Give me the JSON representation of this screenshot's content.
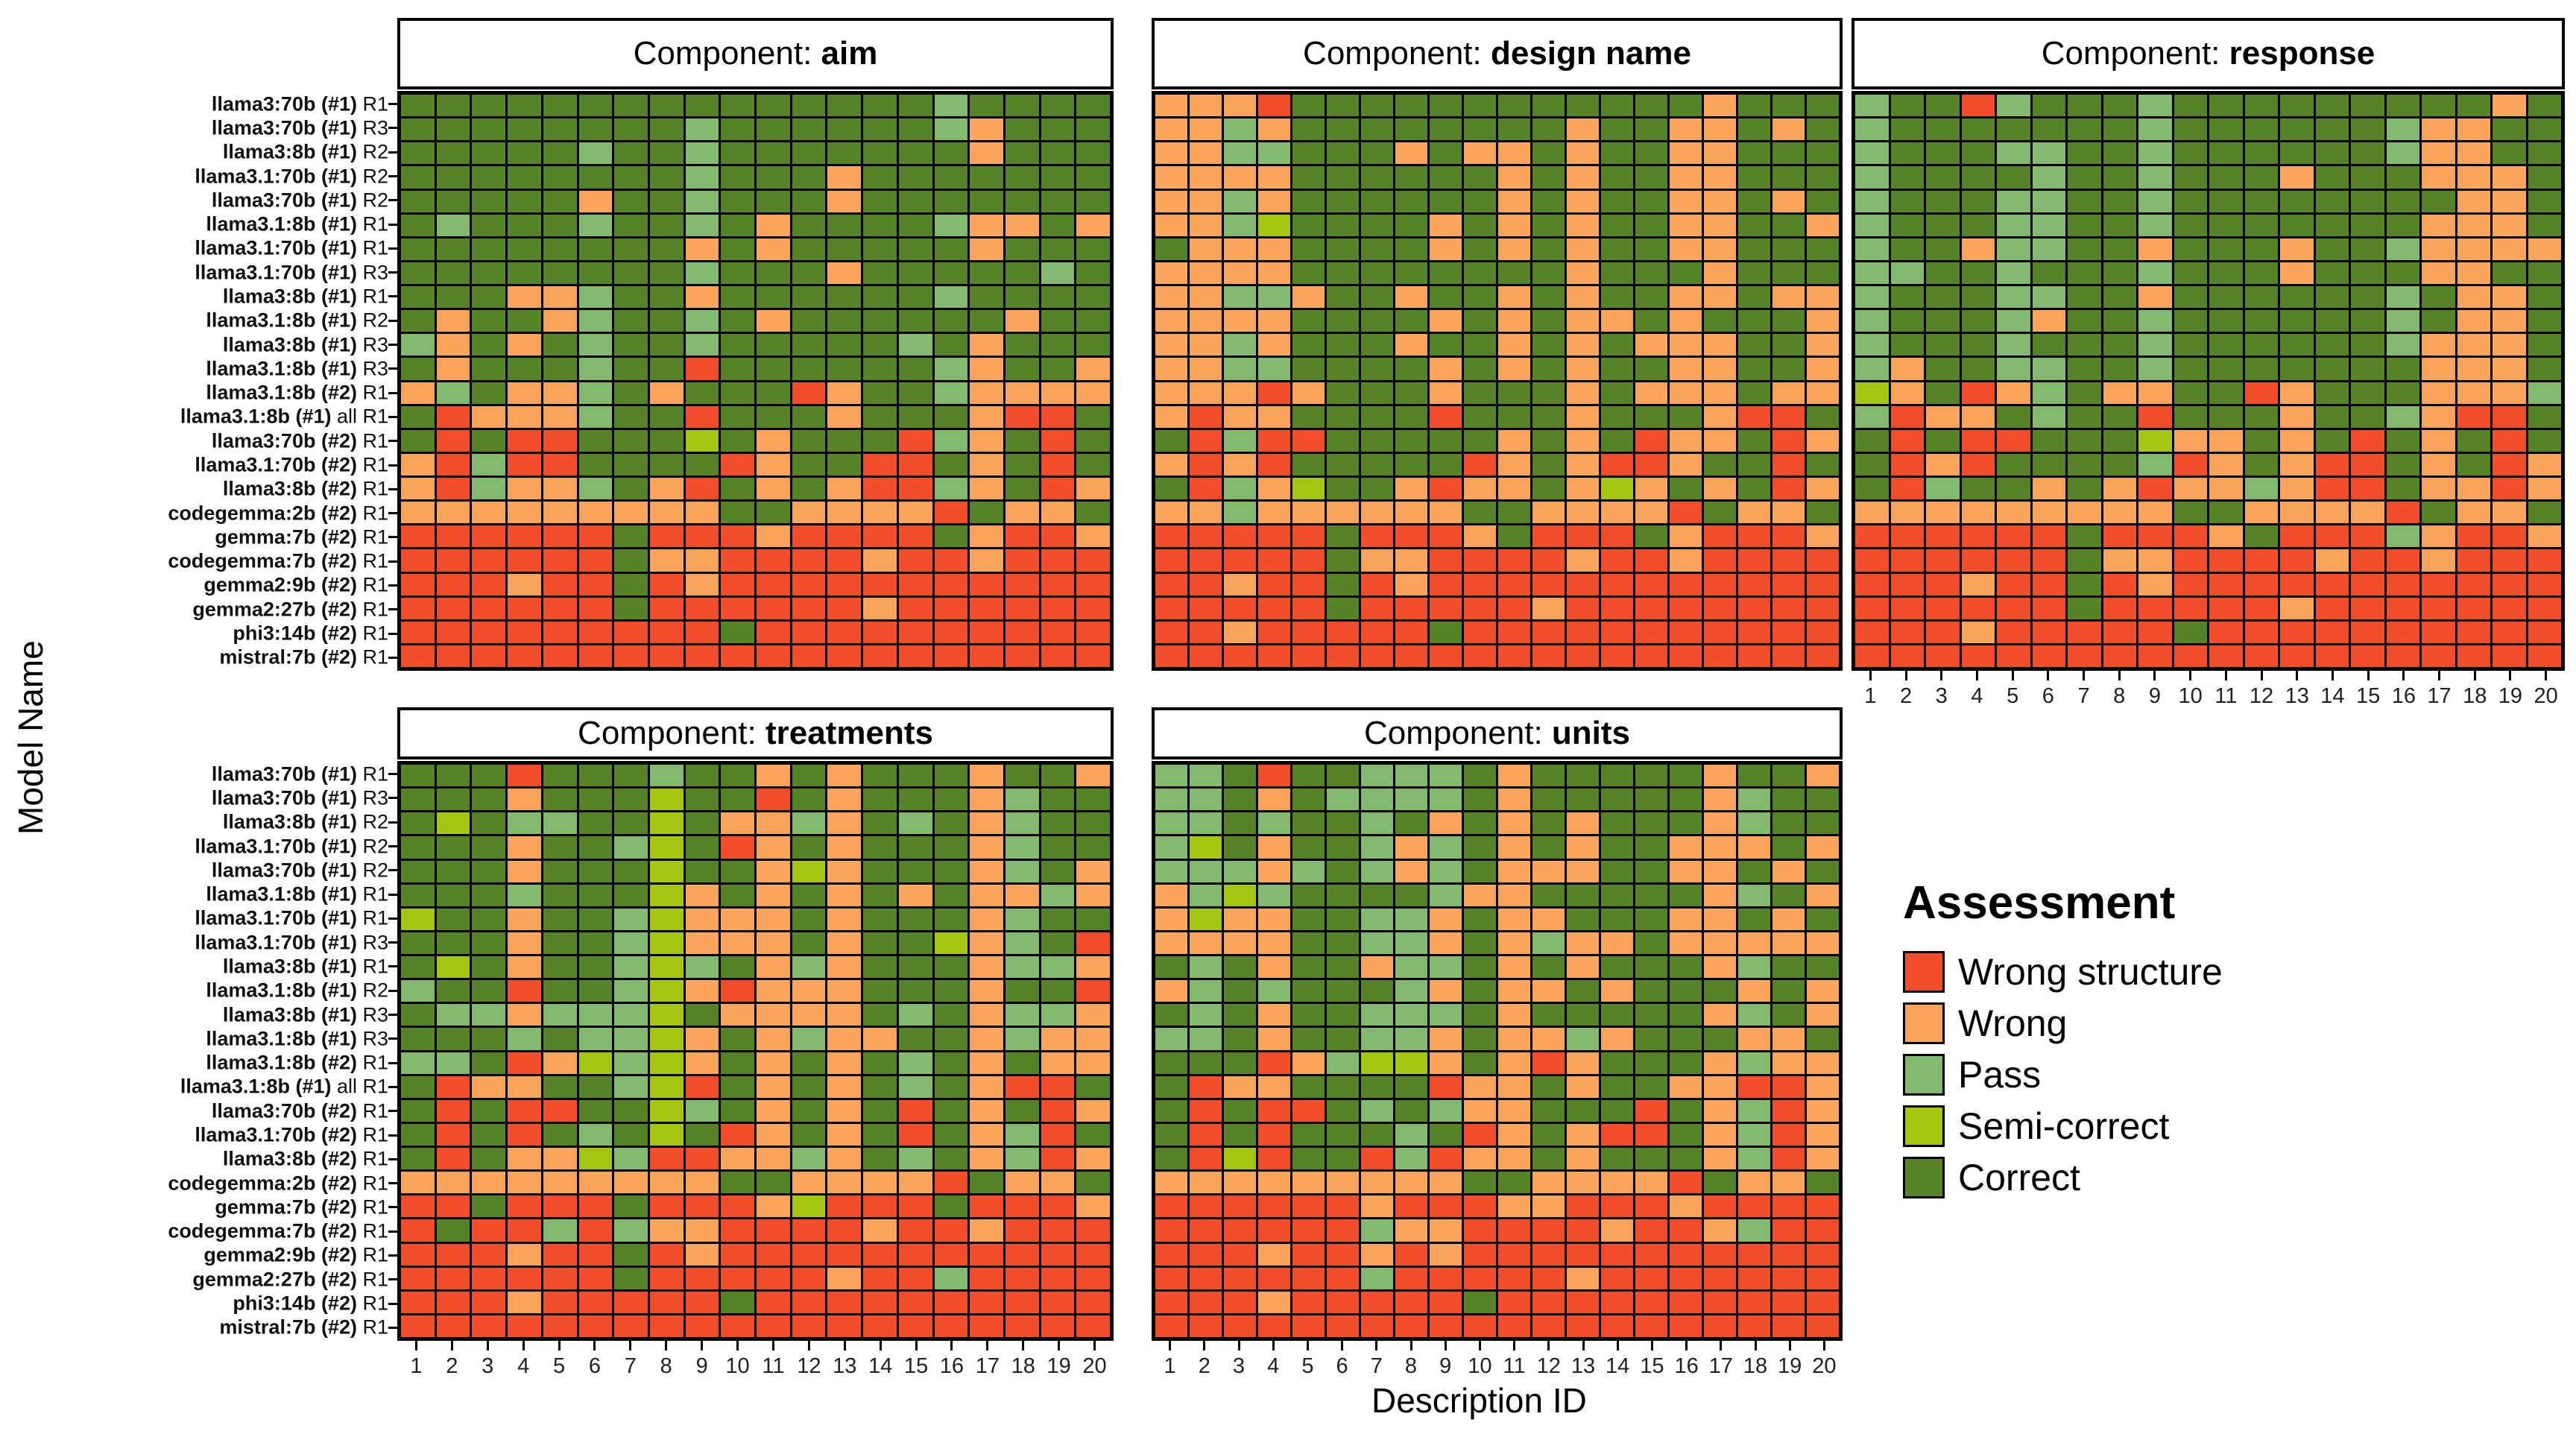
{
  "chart_data": {
    "type": "heatmap",
    "x_axis": {
      "label": "Description ID",
      "ticks": [
        "1",
        "2",
        "3",
        "4",
        "5",
        "6",
        "7",
        "8",
        "9",
        "10",
        "11",
        "12",
        "13",
        "14",
        "15",
        "16",
        "17",
        "18",
        "19",
        "20"
      ]
    },
    "y_axis": {
      "label": "Model Name",
      "categories": [
        {
          "b": "llama3:70b (#1)",
          "r": "R1"
        },
        {
          "b": "llama3:70b (#1)",
          "r": "R3"
        },
        {
          "b": "llama3:8b (#1)",
          "r": "R2"
        },
        {
          "b": "llama3.1:70b (#1)",
          "r": "R2"
        },
        {
          "b": "llama3:70b (#1)",
          "r": "R2"
        },
        {
          "b": "llama3.1:8b (#1)",
          "r": "R1"
        },
        {
          "b": "llama3.1:70b (#1)",
          "r": "R1"
        },
        {
          "b": "llama3.1:70b (#1)",
          "r": "R3"
        },
        {
          "b": "llama3:8b (#1)",
          "r": "R1"
        },
        {
          "b": "llama3.1:8b (#1)",
          "r": "R2"
        },
        {
          "b": "llama3:8b (#1)",
          "r": "R3"
        },
        {
          "b": "llama3.1:8b (#1)",
          "r": "R3"
        },
        {
          "b": "llama3.1:8b (#2)",
          "r": "R1"
        },
        {
          "b": "llama3.1:8b (#1)",
          "r": "all R1"
        },
        {
          "b": "llama3:70b (#2)",
          "r": "R1"
        },
        {
          "b": "llama3.1:70b (#2)",
          "r": "R1"
        },
        {
          "b": "llama3:8b (#2)",
          "r": "R1"
        },
        {
          "b": "codegemma:2b (#2)",
          "r": "R1"
        },
        {
          "b": "gemma:7b (#2)",
          "r": "R1"
        },
        {
          "b": "codegemma:7b (#2)",
          "r": "R1"
        },
        {
          "b": "gemma2:9b (#2)",
          "r": "R1"
        },
        {
          "b": "gemma2:27b (#2)",
          "r": "R1"
        },
        {
          "b": "phi3:14b (#2)",
          "r": "R1"
        },
        {
          "b": "mistral:7b (#2)",
          "r": "R1"
        }
      ]
    },
    "legend": {
      "title": "Assessment",
      "entries": [
        {
          "code": "R",
          "label": "Wrong structure",
          "color": "#F44D2B"
        },
        {
          "code": "O",
          "label": "Wrong",
          "color": "#F9A45C"
        },
        {
          "code": "P",
          "label": "Pass",
          "color": "#84BA70"
        },
        {
          "code": "S",
          "label": "Semi-correct",
          "color": "#A4C613"
        },
        {
          "code": "C",
          "label": "Correct",
          "color": "#578327"
        }
      ]
    },
    "colors": {
      "R": "#F44D2B",
      "O": "#F9A45C",
      "P": "#84BA70",
      "S": "#A4C613",
      "C": "#578327"
    },
    "strip_prefix": "Component: ",
    "facets": [
      {
        "name": "aim",
        "grid": [
          "CCCCCCCCCCCCCCCPCCCC",
          "CCCCCCCCPCCCCCCPOCCC",
          "CCCCCPCCPCCCCCCCOCCC",
          "CCCCCCCCPCCCOCCCCCCC",
          "CCCCCOCCPCCCOCCCCCCC",
          "CPCCCPCCPCOCCCCPOOCO",
          "CCCCCCCCOCOCCCCCOCCC",
          "CCCCCCCCPCCCOCCCCCPC",
          "CCCOOPCCOCCCCCCPCCCC",
          "COCCOPCCPCOCCCCCCOCC",
          "POCOCPCCPCCCCCPCOCCC",
          "COCCCPCCRCCCCCCPOCCO",
          "OPCOOPCOCCCROCCPOOOO",
          "CROOOPCCRCCCOCCCORRC",
          "CRCRRCCCSCOCCCRPOCRC",
          "ORPRRCCCCROCCRRCOCRC",
          "ORPOOPCORCOCORRPOCRO",
          "OOOOOOOOOCCOOOORCOOC",
          "RRRRRRCRRRORRRRCORRO",
          "RRRRRRCOORRRRORRORRR",
          "RRRORRCRORRRRRRRRRRR",
          "RRRRRRCRRRRRRORRRRRR",
          "RRRRRRRRRCRRRRRRRRRR",
          "RRRRRRRRRRRRRRRRRRRR"
        ]
      },
      {
        "name": "design name",
        "grid": [
          "OOORCCCCCCCCCCCCOCCC",
          "OOPOCCCCCCCCOCCOOCOC",
          "OOPPCCCOCOOCOCCOOCCC",
          "OOOOCCCCCCOCOCCOOCCC",
          "OOPOCCCCCCOCOCCOOCOC",
          "OOPSCCCCOCOCOCCOOCCO",
          "COOOCCCCOCOCOCCOOCCC",
          "OOOOCCCCCCCCOCCCOCCC",
          "OOPPOCCOCCOCOCCOOCOO",
          "OOOOCCCCOCOCOOCOCCCO",
          "OOPOCCCOCCOCOCOOOCCO",
          "OOPPCCCCOCOCOCCOOCCO",
          "OOOROCCCOCCCOCOOOCOO",
          "OROOCCCCRCCCOCCCORRC",
          "CRPRRCCCCCOCOCROOCRO",
          "ORORCCCCCROCORROCCRC",
          "CRPOSCCOROOCOSOCOCRO",
          "OOPOOOOOOCCOOOORCOOC",
          "RRRRRCRRROCRRRCORRRO",
          "RRRRRCOORRRRORRORRRR",
          "RRORRCRORRRRRRRRRRRR",
          "RRRRRCRRRRRORRRRRRRR",
          "RRORRRRRCRRRRRRRRRRR",
          "RRRRRRRRRRRRRRRRRRRR"
        ]
      },
      {
        "name": "response",
        "grid": [
          "PCCRPCCCPCCCCCCCCCOC",
          "PCCCCCCCPCCCCCCPOOCC",
          "PCCCPPCCPCCCCCCPOOCC",
          "PCCCCPCCPCCCOCCCOOOC",
          "PCCCPPCCPCCCCCCCCOOC",
          "PCCCPPCCPCCCCCCCOOOC",
          "PCCOPPCCOCCCOCCPOOOO",
          "PPCCPCCCPCCCOCCCOOCC",
          "PCCCPPCCOCCCCCCPCOOC",
          "PCCCPOCCPCCCCCCPCOOC",
          "PCCCPCCCPCCCCCCPOOOC",
          "POCCPPCCPCCCCCCCOOOC",
          "SOCROPCOOCCROCCCOOOP",
          "PROOCPCCRCCCOCCPORRC",
          "CRCRRCCCSOOCOCRCOCRC",
          "CRORCCCCPROCORRCOCRO",
          "CRPCCOCOROOPORRCOORO",
          "OOOOOOOOOCCOOOORCOOC",
          "RRRRRRCRRROCRRRPORRO",
          "RRRRRRCOORRRRORRORRR",
          "RRRORRCRORRRRRRRRRRR",
          "RRRRRRCRRRRRORRRRRRR",
          "RRRORRRRRCRRRRRRRRRR",
          "RRRRRRRRRRRRRRRRRRRR"
        ]
      },
      {
        "name": "treatments",
        "grid": [
          "CCCRCCCPCCOCOCCCOCCO",
          "CCCOCCCSCCRCOCCCOPCC",
          "CSCPPCCSCOOPOCPCOPCC",
          "CCCOCCPSCROCOCCCOPCC",
          "CCCOCCCSCCOSOCCCOPCO",
          "CCCPCCCSOCOCOCOCOOPO",
          "SCCOCCPSOOOCOCCCOPCC",
          "CCCOCCPSOOOCOCCSOPCR",
          "CSCOCCPSPCOPOCCCOPPO",
          "PCCRCCPSOROOOCCCOCCR",
          "CPPOPPPSCOOOOCPCOPPO",
          "CCCPCPPSOCOPOOCCOPOO",
          "PPCROSPSOCOCOCPCOCOO",
          "CROOCCPSRCOCOCPCORRC",
          "CRCRRCCSPCOCOCRCOCRO",
          "CRCRCPCSCROCOCRCOPRC",
          "CRCOOSPRROOPOCPCOPRO",
          "OOOOOOOOOCCOOOORCOOC",
          "RRCRRRCRRROSRRRCRRRO",
          "RCRRPRPOORRRRORRORRR",
          "RRRORRCRORRRRRRRRRRR",
          "RRRRRRCRRRRRORRPRRRR",
          "RRRORRRRRCRRRRRRRRRR",
          "RRRRRRRRRRRRRRRRRRRR"
        ]
      },
      {
        "name": "units",
        "grid": [
          "PPCRCCPPPCOCCCCCOCCO",
          "PPCOCPPPPCOCCCCCOPCC",
          "PPCPCCPCOCOCOCCCOPCC",
          "PSCOCCPOPCOCOCCOOOCO",
          "PPPOPCPOPCOOOCCOOCOC",
          "OPSPCCCCPOOCCCCCOPCO",
          "OSOOCCPPOCOOCCCOOCOC",
          "OOOOCCPPOCOPOOCOOOOO",
          "CPCOCCOPPCOCOCCCOPCC",
          "OPCPCCCPOCOOCOCCCOCO",
          "CPCOCCPPPCOCCCCCOPCO",
          "PPCOCCPPOCOOPOCCCOOC",
          "CCCROPSSOCOROCCCOPOO",
          "CROOCCCCROOCOCCOORRO",
          "CRCRRCPCPOOCCCRCOPRO",
          "CRCRCCCPCROCORRCOPRO",
          "CRSRCCRPROOCOCCCOPRO",
          "OOOOOOOOOCCOOOORCOOC",
          "RRRRRRORRROORRRORRRR",
          "RRRRRRPOORRRRORROPRR",
          "RRRORRORORRRRRRRRRRR",
          "RRRRRRPRRRRRORRRRRRR",
          "RRRORRRRRCRRRRRRRRRR",
          "RRRRRRRRRRRRRRRRRRRR"
        ]
      }
    ]
  }
}
